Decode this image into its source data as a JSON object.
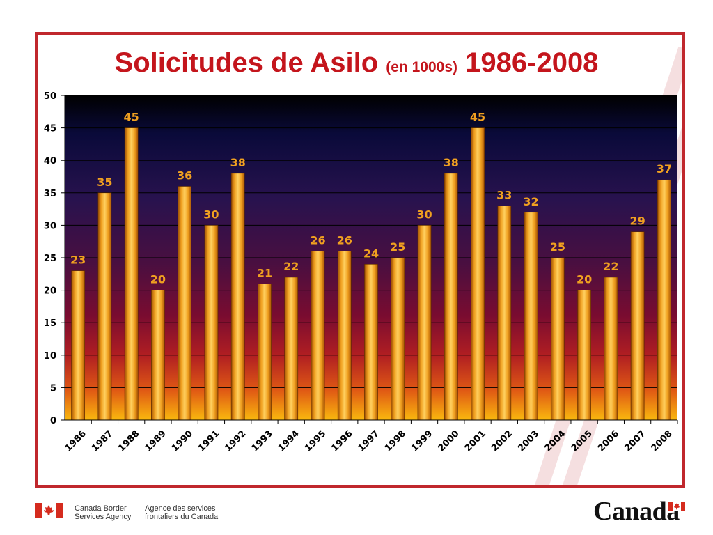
{
  "chart_data": {
    "type": "bar",
    "title": "Solicitudes de Asilo",
    "title_sub": "(en 1000s)",
    "title_years": "1986-2008",
    "categories": [
      "1986",
      "1987",
      "1988",
      "1989",
      "1990",
      "1991",
      "1992",
      "1993",
      "1994",
      "1995",
      "1996",
      "1997",
      "1998",
      "1999",
      "2000",
      "2001",
      "2002",
      "2003",
      "2004",
      "2005",
      "2006",
      "2007",
      "2008"
    ],
    "values": [
      23,
      35,
      45,
      20,
      36,
      30,
      38,
      21,
      22,
      26,
      26,
      24,
      25,
      30,
      38,
      45,
      33,
      32,
      25,
      20,
      22,
      29,
      37
    ],
    "ylim": [
      0,
      50
    ],
    "yticks": [
      0,
      5,
      10,
      15,
      20,
      25,
      30,
      35,
      40,
      45,
      50
    ],
    "grid": true,
    "colors": {
      "bar": "#f0a020",
      "label": "#f0a020",
      "title": "#c4151c",
      "frame": "#c0282d"
    }
  },
  "footer": {
    "agency_en_line1": "Canada Border",
    "agency_en_line2": "Services Agency",
    "agency_fr_line1": "Agence des services",
    "agency_fr_line2": "frontaliers du Canada",
    "wordmark": "Canada"
  }
}
